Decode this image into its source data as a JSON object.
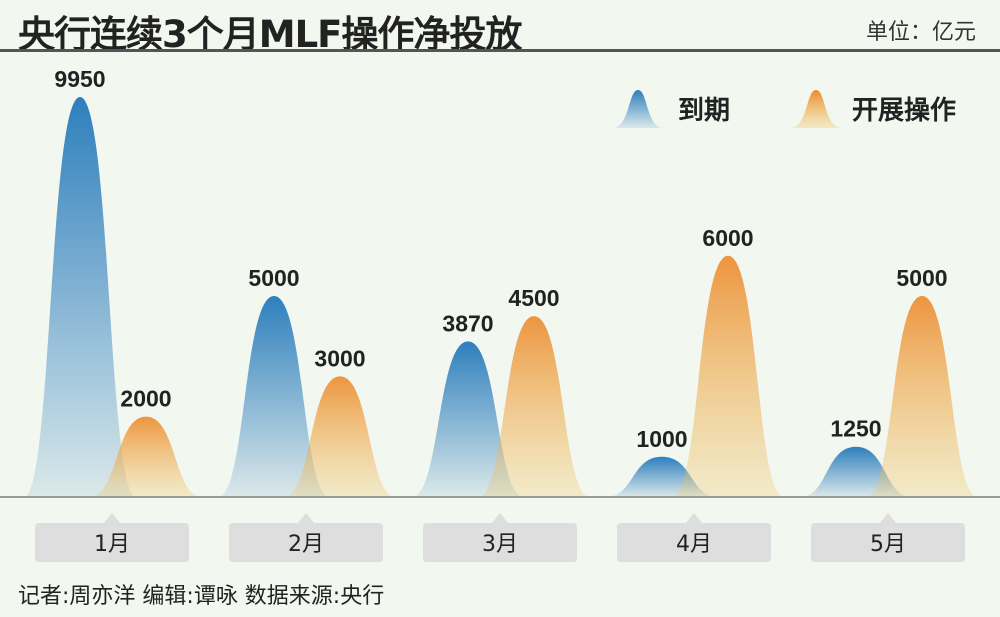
{
  "header": {
    "title": "央行连续3个月MLF操作净投放",
    "unit": "单位：亿元"
  },
  "footer": {
    "credit": "记者:周亦洋  编辑:谭咏  数据来源:央行"
  },
  "chart_data": {
    "type": "area",
    "title": "央行连续3个月MLF操作净投放",
    "unit": "亿元",
    "categories": [
      "1月",
      "2月",
      "3月",
      "4月",
      "5月"
    ],
    "series": [
      {
        "name": "到期",
        "color": "#2e7fbd",
        "values": [
          9950,
          5000,
          3870,
          1000,
          1250
        ]
      },
      {
        "name": "开展操作",
        "color": "#ec8a2c",
        "values": [
          2000,
          3000,
          4500,
          6000,
          5000
        ]
      }
    ],
    "ylim": [
      0,
      10000
    ],
    "grid": false,
    "legend": "top-right"
  }
}
